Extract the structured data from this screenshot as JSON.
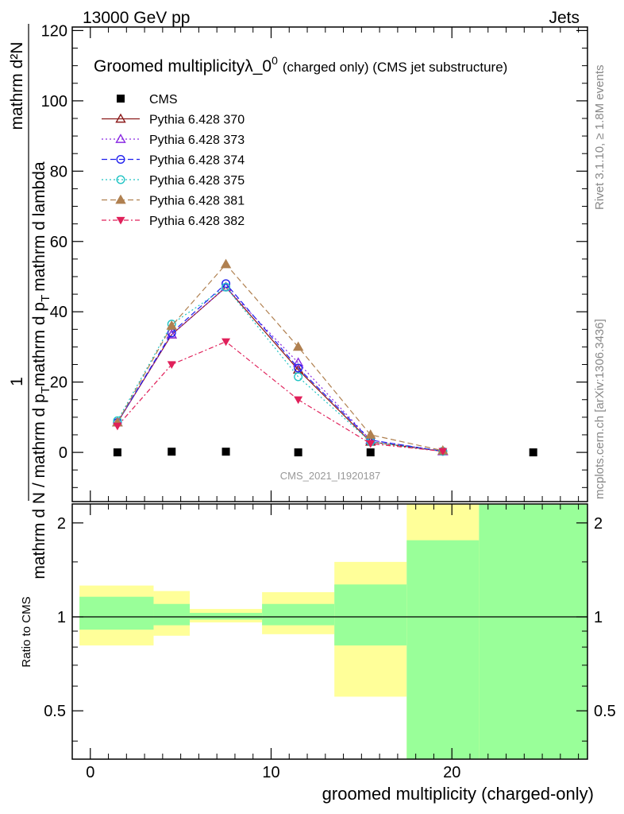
{
  "header": {
    "energy_label": "13000 GeV pp",
    "category_label": "Jets"
  },
  "side_text": {
    "rivet": "Rivet 3.1.10, ≥ 1.8M events",
    "mcplots": "mcplots.cern.ch [arXiv:1306.3436]"
  },
  "watermark": "CMS_2021_I1920187",
  "chart_data": [
    {
      "type": "line",
      "title_main": "Groomed multiplicityλ_0",
      "title_sup": "0",
      "title_suffix": "(charged only) (CMS jet substructure)",
      "ylabel_top": "1",
      "ylabel_num": "mathrm d²N",
      "ylabel_den": "mathrm d N / mathrm d p",
      "ylabel_den_sub": "T",
      "ylabel_den2": "mathrm d p",
      "ylabel_den2_sub": "T",
      "ylabel_den3": "mathrm d lambda",
      "xlim": [
        -1,
        27.5
      ],
      "ylim": [
        -14,
        121
      ],
      "yticks": [
        0,
        20,
        40,
        60,
        80,
        100,
        120
      ],
      "x": [
        1.5,
        4.5,
        7.5,
        11.5,
        15.5,
        19.5
      ],
      "series": [
        {
          "name": "CMS",
          "color": "#000000",
          "marker": "square",
          "dash": "none",
          "x": [
            1.5,
            4.5,
            7.5,
            11.5,
            15.5,
            24.5
          ],
          "values": [
            0,
            0.2,
            0.2,
            0,
            0,
            0
          ]
        },
        {
          "name": "Pythia 6.428 370",
          "color": "#8b1a1a",
          "marker": "triangle-open",
          "dash": "solid",
          "values": [
            8.5,
            33.5,
            47,
            23.5,
            3,
            0.3
          ]
        },
        {
          "name": "Pythia 6.428 373",
          "color": "#8a2be2",
          "marker": "triangle-open",
          "dash": "dotted",
          "values": [
            8.5,
            33.5,
            47,
            25.5,
            3.5,
            0.3
          ]
        },
        {
          "name": "Pythia 6.428 374",
          "color": "#1e1eee",
          "marker": "circle-open",
          "dash": "dashed",
          "values": [
            8.5,
            34,
            48,
            24,
            3.5,
            0.3
          ]
        },
        {
          "name": "Pythia 6.428 375",
          "color": "#20c4c4",
          "marker": "circle-open",
          "dash": "dotted",
          "values": [
            9,
            36.5,
            47,
            21.5,
            3,
            0.3
          ]
        },
        {
          "name": "Pythia 6.428 381",
          "color": "#b08050",
          "marker": "triangle-filled",
          "dash": "dashed",
          "values": [
            8.5,
            36,
            53.5,
            30,
            5,
            0.5
          ]
        },
        {
          "name": "Pythia 6.428 382",
          "color": "#e0205a",
          "marker": "triangle-down-filled",
          "dash": "dashdot",
          "values": [
            7.5,
            25,
            31.5,
            15,
            2.5,
            0.3
          ]
        }
      ]
    },
    {
      "type": "area",
      "ylabel": "Ratio to CMS",
      "xlabel": "groomed multiplicity (charged-only)",
      "xlim": [
        -1,
        27.5
      ],
      "ylim": [
        0.35,
        2.3
      ],
      "log_y": true,
      "yticks": [
        0.5,
        1,
        2
      ],
      "xticks": [
        0,
        10,
        20
      ],
      "bands": [
        {
          "x0": -0.6,
          "x1": 3.5,
          "yellow": [
            0.81,
            1.26
          ],
          "green": [
            0.91,
            1.16
          ]
        },
        {
          "x0": 3.5,
          "x1": 5.5,
          "yellow": [
            0.87,
            1.21
          ],
          "green": [
            0.94,
            1.1
          ]
        },
        {
          "x0": 5.5,
          "x1": 9.5,
          "yellow": [
            0.96,
            1.06
          ],
          "green": [
            0.98,
            1.03
          ]
        },
        {
          "x0": 9.5,
          "x1": 13.5,
          "yellow": [
            0.88,
            1.2
          ],
          "green": [
            0.94,
            1.1
          ]
        },
        {
          "x0": 13.5,
          "x1": 17.5,
          "yellow": [
            0.555,
            1.5
          ],
          "green": [
            0.81,
            1.27
          ]
        },
        {
          "x0": 17.5,
          "x1": 21.5,
          "yellow": [
            0.35,
            2.3
          ],
          "green": [
            0.35,
            1.76
          ]
        },
        {
          "x0": 21.5,
          "x1": 27.5,
          "yellow": [
            0.35,
            2.3
          ],
          "green": [
            0.35,
            2.3
          ]
        }
      ],
      "colors": {
        "yellow": "#ffff99",
        "green": "#99ff99"
      }
    }
  ]
}
